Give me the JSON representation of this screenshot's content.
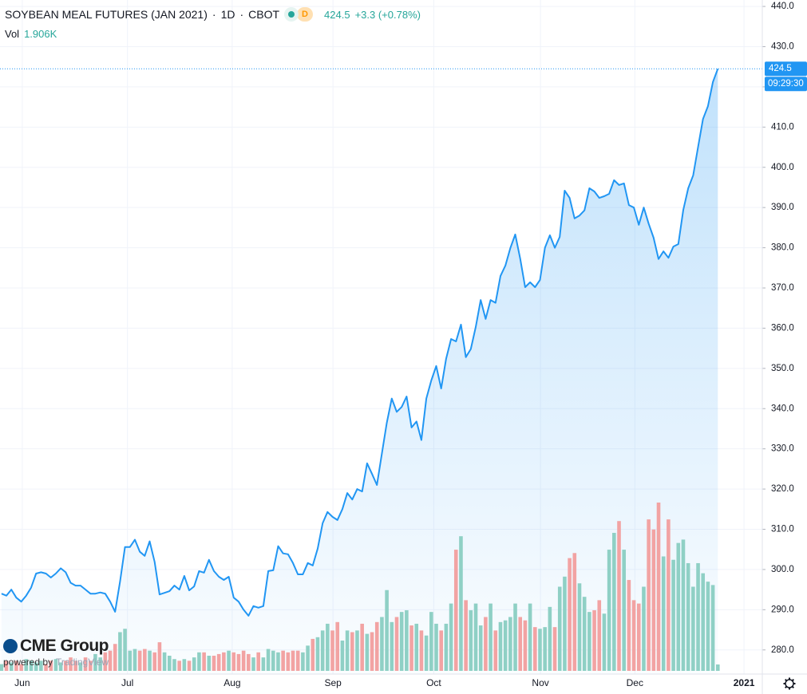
{
  "header": {
    "symbol": "SOYBEAN MEAL FUTURES (JAN 2021)",
    "separator": "·",
    "interval": "1D",
    "exchange": "CBOT",
    "status": "D",
    "last": "424.5",
    "change": "+3.3 (+0.78%)",
    "volume_label": "Vol",
    "volume": "1.906K"
  },
  "logo": {
    "name": "CME Group",
    "powered": "powered by",
    "brand": "TradingView"
  },
  "countdown": "09:29:30",
  "chart_data": {
    "type": "line",
    "ylim": [
      274,
      441.6
    ],
    "yticks": [
      {
        "value": 280,
        "label": "280.0"
      },
      {
        "value": 290,
        "label": "290.0"
      },
      {
        "value": 300,
        "label": "300.0"
      },
      {
        "value": 310,
        "label": "310.0"
      },
      {
        "value": 320,
        "label": "320.0"
      },
      {
        "value": 330,
        "label": "330.0"
      },
      {
        "value": 340,
        "label": "340.0"
      },
      {
        "value": 350,
        "label": "350.0"
      },
      {
        "value": 360,
        "label": "360.0"
      },
      {
        "value": 370,
        "label": "370.0"
      },
      {
        "value": 380,
        "label": "380.0"
      },
      {
        "value": 390,
        "label": "390.0"
      },
      {
        "value": 400,
        "label": "400.0"
      },
      {
        "value": 410,
        "label": "410.0"
      },
      {
        "value": 420,
        "label": "420.0"
      },
      {
        "value": 430,
        "label": "430.0"
      },
      {
        "value": 440,
        "label": "440.0"
      }
    ],
    "xlim": [
      -0.3,
      154
    ],
    "xticks": [
      {
        "value": 4.2,
        "label": "Jun"
      },
      {
        "value": 25.5,
        "label": "Jul"
      },
      {
        "value": 46.7,
        "label": "Aug"
      },
      {
        "value": 67.1,
        "label": "Sep"
      },
      {
        "value": 87.5,
        "label": "Oct"
      },
      {
        "value": 109.1,
        "label": "Nov"
      },
      {
        "value": 128.2,
        "label": "Dec"
      },
      {
        "value": 150.3,
        "label": "2021"
      }
    ],
    "grid": true,
    "series": [
      {
        "color": "#2196f3",
        "values": [
          294,
          293.5,
          295,
          293,
          292,
          293.5,
          295.5,
          299,
          299.3,
          299,
          298,
          299,
          300.3,
          299.3,
          296.7,
          296,
          296,
          295,
          294,
          294,
          294.3,
          294,
          292,
          289.5,
          297,
          305.6,
          305.6,
          307.4,
          304.4,
          303.4,
          307,
          301.9,
          293.8,
          294.2,
          294.6,
          296,
          295,
          298.4,
          294.8,
          295.8,
          299.6,
          299.2,
          302.4,
          299.6,
          298.2,
          297.4,
          298.2,
          293,
          292,
          290,
          288.5,
          290.9,
          290.5,
          290.9,
          299.6,
          299.8,
          305.8,
          304,
          303.8,
          301.6,
          298.8,
          298.8,
          301.6,
          301,
          305.2,
          311.5,
          314.3,
          313.1,
          312.3,
          315,
          319,
          317.4,
          320,
          319.4,
          326.4,
          323.8,
          321,
          328.8,
          336.5,
          342.5,
          339.2,
          340.4,
          343,
          335.3,
          336.8,
          332.2,
          342.5,
          347,
          350.6,
          345,
          352.4,
          357.3,
          356.7,
          360.9,
          352.8,
          354.8,
          360.3,
          367,
          362.3,
          367,
          366.3,
          373,
          375.6,
          379.9,
          383.3,
          377.3,
          370.2,
          371.4,
          370.2,
          372,
          380,
          383.1,
          380,
          382.7,
          394.2,
          392.4,
          387.3,
          388,
          389.3,
          394.8,
          394,
          392.4,
          392.8,
          393.4,
          396.8,
          395.6,
          396,
          390.6,
          390,
          385.7,
          390,
          386,
          382.5,
          377.2,
          379.1,
          377.5,
          380.3,
          380.9,
          389.4,
          394.8,
          398,
          405,
          412,
          415.2,
          421.2,
          424.5
        ]
      },
      {
        "type": "volume",
        "up_color": "#8fd0c5",
        "down_color": "#f2a3a3",
        "values": [
          2,
          3,
          2.5,
          3,
          2,
          3.5,
          3,
          2.5,
          3,
          2,
          3,
          3.5,
          2.5,
          3,
          4,
          3,
          2.5,
          4,
          3,
          5,
          4,
          5.5,
          6,
          8,
          11.5,
          12.5,
          6,
          6.5,
          6,
          6.5,
          6,
          5.5,
          8.5,
          5.5,
          4.5,
          3.5,
          3,
          3.5,
          3,
          4,
          5.5,
          5.5,
          4.5,
          4.5,
          5,
          5.5,
          6,
          5.5,
          5,
          6,
          5,
          4,
          5.5,
          4,
          6.5,
          6,
          5.5,
          6,
          5.5,
          6,
          6,
          5.5,
          7.5,
          9.5,
          10,
          12,
          14,
          12,
          14.5,
          9,
          12,
          11.5,
          12,
          14,
          11,
          11.5,
          14.5,
          16,
          24,
          14.5,
          16,
          17.5,
          18,
          13.5,
          14,
          12,
          10.5,
          17.5,
          14,
          12,
          14,
          20,
          36,
          40,
          21,
          18,
          20,
          13.5,
          16,
          20,
          12,
          14.5,
          15,
          16,
          20,
          16,
          15,
          20,
          13,
          12.5,
          13,
          19,
          13,
          25,
          28,
          33.5,
          35,
          26,
          22,
          17.5,
          18,
          21,
          17,
          36,
          41,
          44.5,
          36,
          27,
          21,
          20,
          25,
          45,
          42,
          50,
          34,
          45,
          33,
          38,
          39,
          32,
          25,
          32,
          29,
          26.5,
          25.5,
          1.906
        ]
      }
    ]
  }
}
